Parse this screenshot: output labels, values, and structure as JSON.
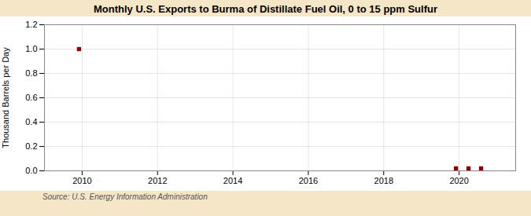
{
  "chart_data": {
    "type": "scatter",
    "title": "Monthly U.S. Exports to Burma of Distillate Fuel Oil, 0 to 15 ppm Sulfur",
    "ylabel": "Thousand Barrels per Day",
    "source": "Source: U.S. Energy Information Administration",
    "x": [
      2009.917,
      2019.917,
      2020.25,
      2020.583
    ],
    "values": [
      1.0,
      0.02,
      0.02,
      0.02
    ],
    "color": "#8B0000",
    "marker": "square",
    "xlim": [
      2009.0,
      2021.5
    ],
    "xticks": [
      2010,
      2012,
      2014,
      2016,
      2018,
      2020
    ],
    "ylim": [
      0.0,
      1.2
    ],
    "yticks": [
      {
        "value": 0.0,
        "label": "0.0"
      },
      0.2,
      0.4,
      0.6,
      0.8,
      {
        "value": 1.0,
        "label": "1.0"
      },
      1.2
    ],
    "grid": true
  }
}
